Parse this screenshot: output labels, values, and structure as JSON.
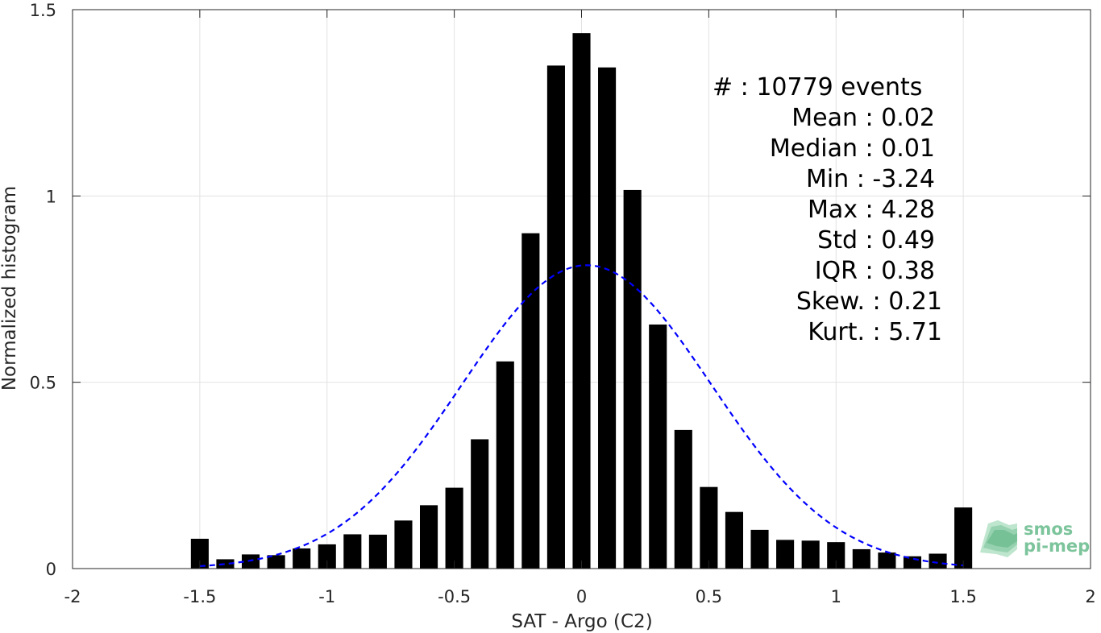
{
  "chart_data": {
    "type": "bar",
    "xlabel": "SAT - Argo (C2)",
    "ylabel": "Normalized histogram",
    "xlim": [
      -2,
      2
    ],
    "ylim": [
      0,
      1.5
    ],
    "xticks": [
      -2,
      -1.5,
      -1,
      -0.5,
      0,
      0.5,
      1,
      1.5,
      2
    ],
    "xtick_labels": [
      "-2",
      "-1.5",
      "-1",
      "-0.5",
      "0",
      "0.5",
      "1",
      "1.5",
      "2"
    ],
    "yticks": [
      0,
      0.5,
      1,
      1.5
    ],
    "ytick_labels": [
      "0",
      "0.5",
      "1",
      "1.5"
    ],
    "grid": true,
    "bar_width": 0.07,
    "bar_color": "#000000",
    "bars": {
      "x": [
        -1.5,
        -1.4,
        -1.3,
        -1.2,
        -1.1,
        -1.0,
        -0.9,
        -0.8,
        -0.7,
        -0.6,
        -0.5,
        -0.4,
        -0.3,
        -0.2,
        -0.1,
        0.0,
        0.1,
        0.2,
        0.3,
        0.4,
        0.5,
        0.6,
        0.7,
        0.8,
        0.9,
        1.0,
        1.1,
        1.2,
        1.3,
        1.4,
        1.5
      ],
      "values": [
        0.08,
        0.025,
        0.038,
        0.036,
        0.054,
        0.065,
        0.092,
        0.091,
        0.129,
        0.17,
        0.217,
        0.347,
        0.556,
        0.9,
        1.35,
        1.437,
        1.345,
        1.016,
        0.655,
        0.372,
        0.219,
        0.152,
        0.104,
        0.077,
        0.075,
        0.071,
        0.052,
        0.043,
        0.033,
        0.04,
        0.164
      ]
    },
    "fit_curve": {
      "type": "gaussian",
      "mean": 0.02,
      "std": 0.49,
      "x_range": [
        -1.5,
        1.5
      ],
      "color": "#0000ff",
      "style": "dashed"
    },
    "annotation_lines": [
      "#  : 10779 events",
      "Mean : 0.02",
      "Median : 0.01",
      "Min : -3.24",
      "Max : 4.28",
      "Std : 0.49",
      "IQR : 0.38",
      "Skew. : 0.21",
      "Kurt. : 5.71"
    ]
  },
  "logo": {
    "line1": "smos",
    "line2": "pi-mep",
    "color": "#7cc49b"
  }
}
